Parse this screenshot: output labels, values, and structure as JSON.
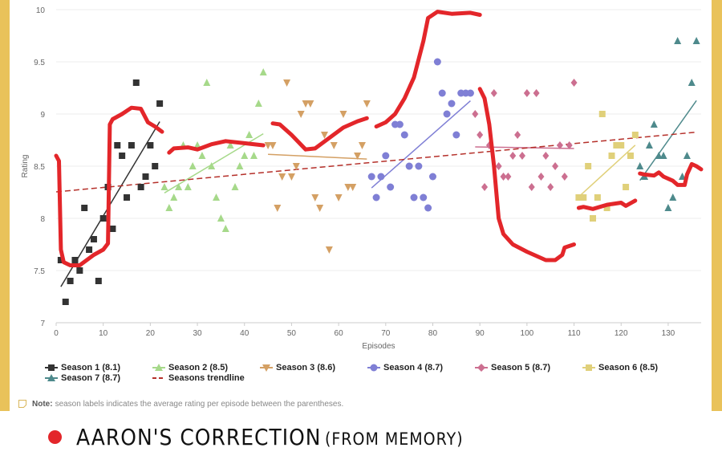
{
  "colors": {
    "frame": "#e9c25a",
    "s1": "#333333",
    "s2": "#a6d98a",
    "s3": "#d4a064",
    "s4": "#7f7fd5",
    "s5": "#cc6f90",
    "s6": "#e0d07a",
    "s7": "#4e8a8c",
    "trend": "#b5302a",
    "correction": "#e3262a"
  },
  "chart_data": {
    "type": "scatter",
    "xlabel": "Episodes",
    "ylabel": "Rating",
    "xlim": [
      0,
      137
    ],
    "ylim": [
      7,
      10
    ],
    "xticks": [
      0,
      10,
      20,
      30,
      40,
      50,
      60,
      70,
      80,
      90,
      100,
      110,
      120,
      130
    ],
    "yticks": [
      7,
      7.5,
      8,
      8.5,
      9,
      9.5,
      10
    ],
    "grid": true,
    "legend_position": "bottom",
    "series": [
      {
        "name": "Season 1 (8.1)",
        "marker": "square",
        "color": "#333333",
        "x": [
          1,
          2,
          3,
          4,
          5,
          6,
          7,
          8,
          9,
          10,
          11,
          12,
          13,
          14,
          15,
          16,
          17,
          18,
          19,
          20,
          21,
          22
        ],
        "y": [
          7.6,
          7.2,
          7.4,
          7.6,
          7.5,
          8.1,
          7.7,
          7.8,
          7.4,
          8.0,
          8.3,
          7.9,
          8.7,
          8.6,
          8.2,
          8.7,
          9.3,
          8.3,
          8.4,
          8.7,
          8.5,
          9.1
        ]
      },
      {
        "name": "Season 2 (8.5)",
        "marker": "triangle-up",
        "color": "#a6d98a",
        "x": [
          23,
          24,
          25,
          26,
          27,
          28,
          29,
          30,
          31,
          32,
          33,
          34,
          35,
          36,
          37,
          38,
          39,
          40,
          41,
          42,
          43,
          44
        ],
        "y": [
          8.3,
          8.1,
          8.2,
          8.3,
          8.7,
          8.3,
          8.5,
          8.7,
          8.6,
          9.3,
          8.5,
          8.2,
          8.0,
          7.9,
          8.7,
          8.3,
          8.5,
          8.6,
          8.8,
          8.6,
          9.1,
          9.4
        ]
      },
      {
        "name": "Season 3 (8.6)",
        "marker": "triangle-down",
        "color": "#d4a064",
        "x": [
          45,
          46,
          47,
          48,
          49,
          50,
          51,
          52,
          53,
          54,
          55,
          56,
          57,
          58,
          59,
          60,
          61,
          62,
          63,
          64,
          65,
          66
        ],
        "y": [
          8.7,
          8.7,
          8.1,
          8.4,
          9.3,
          8.4,
          8.5,
          9.0,
          9.1,
          9.1,
          8.2,
          8.1,
          8.8,
          7.7,
          8.7,
          8.2,
          9.0,
          8.3,
          8.3,
          8.6,
          8.7,
          9.1
        ]
      },
      {
        "name": "Season 4 (8.7)",
        "marker": "circle",
        "color": "#7f7fd5",
        "x": [
          67,
          68,
          69,
          70,
          71,
          72,
          73,
          74,
          75,
          76,
          77,
          78,
          79,
          80,
          81,
          82,
          83,
          84,
          85,
          86,
          87,
          88
        ],
        "y": [
          8.4,
          8.2,
          8.4,
          8.6,
          8.3,
          8.9,
          8.9,
          8.8,
          8.5,
          8.2,
          8.5,
          8.2,
          8.1,
          8.4,
          9.5,
          9.2,
          9.0,
          9.1,
          8.8,
          9.2,
          9.2,
          9.2
        ]
      },
      {
        "name": "Season 5 (8.7)",
        "marker": "diamond",
        "color": "#cc6f90",
        "x": [
          89,
          90,
          91,
          92,
          93,
          94,
          95,
          96,
          97,
          98,
          99,
          100,
          101,
          102,
          103,
          104,
          105,
          106,
          107,
          108,
          109,
          110
        ],
        "y": [
          9.0,
          8.8,
          8.3,
          8.7,
          9.2,
          8.5,
          8.4,
          8.4,
          8.6,
          8.8,
          8.6,
          9.2,
          8.3,
          9.2,
          8.4,
          8.6,
          8.3,
          8.5,
          8.7,
          8.4,
          8.7,
          9.3
        ]
      },
      {
        "name": "Season 6 (8.5)",
        "marker": "square",
        "color": "#e0d07a",
        "x": [
          111,
          112,
          113,
          114,
          115,
          116,
          117,
          118,
          119,
          120,
          121,
          122,
          123
        ],
        "y": [
          8.2,
          8.2,
          8.5,
          8.0,
          8.2,
          9.0,
          8.1,
          8.6,
          8.7,
          8.7,
          8.3,
          8.6,
          8.8
        ]
      },
      {
        "name": "Season 7 (8.7)",
        "marker": "triangle-up",
        "color": "#4e8a8c",
        "x": [
          124,
          125,
          126,
          127,
          128,
          129,
          130,
          131,
          132,
          133,
          134,
          135,
          136
        ],
        "y": [
          8.5,
          8.4,
          8.7,
          8.9,
          8.6,
          8.6,
          8.1,
          8.2,
          9.7,
          8.4,
          8.6,
          9.3,
          9.7
        ]
      }
    ],
    "trendline": {
      "name": "Seasons trendline",
      "style": "dashed",
      "color": "#b5302a"
    },
    "annotation_path": {
      "color": "#e3262a",
      "segments": [
        [
          [
            0,
            8.6
          ],
          [
            0.6,
            8.55
          ],
          [
            1,
            7.7
          ],
          [
            1.6,
            7.58
          ],
          [
            3,
            7.55
          ],
          [
            5,
            7.55
          ],
          [
            8,
            7.65
          ],
          [
            10,
            7.7
          ],
          [
            11,
            7.76
          ],
          [
            11.2,
            8.3
          ],
          [
            11.4,
            8.9
          ],
          [
            12,
            8.95
          ],
          [
            14,
            9.0
          ],
          [
            16,
            9.06
          ],
          [
            18,
            9.05
          ],
          [
            19.5,
            8.92
          ],
          [
            21,
            8.88
          ],
          [
            22.5,
            8.83
          ]
        ],
        [
          [
            24,
            8.63
          ],
          [
            25,
            8.67
          ],
          [
            28,
            8.68
          ],
          [
            30,
            8.66
          ],
          [
            33,
            8.71
          ],
          [
            36,
            8.74
          ],
          [
            40,
            8.72
          ],
          [
            44,
            8.7
          ]
        ],
        [
          [
            46,
            8.91
          ],
          [
            47.5,
            8.9
          ],
          [
            50,
            8.8
          ],
          [
            53,
            8.66
          ],
          [
            55,
            8.67
          ],
          [
            58,
            8.77
          ],
          [
            61,
            8.87
          ],
          [
            64,
            8.93
          ],
          [
            66,
            8.96
          ]
        ],
        [
          [
            68,
            8.88
          ],
          [
            70,
            8.92
          ],
          [
            72,
            9.0
          ],
          [
            74,
            9.15
          ],
          [
            76,
            9.35
          ],
          [
            78,
            9.7
          ],
          [
            79,
            9.92
          ],
          [
            81,
            9.98
          ],
          [
            84,
            9.96
          ],
          [
            88,
            9.97
          ],
          [
            90,
            9.95
          ]
        ],
        [
          [
            90,
            9.24
          ],
          [
            91,
            9.15
          ],
          [
            92,
            8.9
          ],
          [
            93,
            8.5
          ],
          [
            94,
            8.0
          ],
          [
            95,
            7.85
          ],
          [
            97,
            7.75
          ],
          [
            100,
            7.68
          ],
          [
            104,
            7.6
          ],
          [
            106,
            7.6
          ],
          [
            107.5,
            7.65
          ],
          [
            108,
            7.72
          ],
          [
            110,
            7.75
          ]
        ],
        [
          [
            111,
            8.1
          ],
          [
            112,
            8.11
          ],
          [
            114,
            8.09
          ],
          [
            117,
            8.13
          ],
          [
            120,
            8.15
          ],
          [
            121,
            8.12
          ],
          [
            123,
            8.17
          ]
        ],
        [
          [
            124,
            8.43
          ],
          [
            125,
            8.42
          ],
          [
            127,
            8.41
          ],
          [
            128,
            8.44
          ],
          [
            129,
            8.4
          ],
          [
            131,
            8.36
          ],
          [
            132,
            8.32
          ],
          [
            133.5,
            8.32
          ],
          [
            134,
            8.42
          ],
          [
            135,
            8.52
          ],
          [
            136,
            8.5
          ],
          [
            137,
            8.47
          ]
        ]
      ]
    }
  },
  "legend": {
    "items": [
      "Season 1 (8.1)",
      "Season 2 (8.5)",
      "Season 3 (8.6)",
      "Season 4 (8.7)",
      "Season 5 (8.7)",
      "Season 6 (8.5)",
      "Season 7 (8.7)",
      "Seasons trendline"
    ]
  },
  "note": {
    "label": "Note:",
    "text": "season labels indicates the average rating per episode between the parentheses."
  },
  "annotation_caption": {
    "main": "AARON'S CORRECTION",
    "sub": "(FROM MEMORY)"
  }
}
